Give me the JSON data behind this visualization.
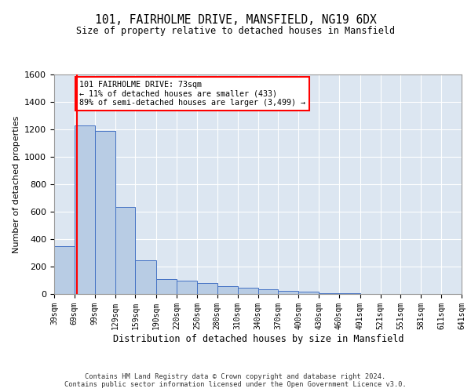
{
  "title": "101, FAIRHOLME DRIVE, MANSFIELD, NG19 6DX",
  "subtitle": "Size of property relative to detached houses in Mansfield",
  "xlabel": "Distribution of detached houses by size in Mansfield",
  "ylabel": "Number of detached properties",
  "footer_line1": "Contains HM Land Registry data © Crown copyright and database right 2024.",
  "footer_line2": "Contains public sector information licensed under the Open Government Licence v3.0.",
  "annotation_line1": "101 FAIRHOLME DRIVE: 73sqm",
  "annotation_line2": "← 11% of detached houses are smaller (433)",
  "annotation_line3": "89% of semi-detached houses are larger (3,499) →",
  "property_sqm": 73,
  "categories": [
    "39sqm",
    "69sqm",
    "99sqm",
    "129sqm",
    "159sqm",
    "190sqm",
    "220sqm",
    "250sqm",
    "280sqm",
    "310sqm",
    "340sqm",
    "370sqm",
    "400sqm",
    "430sqm",
    "460sqm",
    "491sqm",
    "521sqm",
    "551sqm",
    "581sqm",
    "611sqm",
    "641sqm"
  ],
  "bin_edges": [
    39,
    69,
    99,
    129,
    159,
    190,
    220,
    250,
    280,
    310,
    340,
    370,
    400,
    430,
    460,
    491,
    521,
    551,
    581,
    611,
    641
  ],
  "values": [
    350,
    1230,
    1190,
    635,
    245,
    110,
    100,
    80,
    60,
    45,
    35,
    25,
    20,
    8,
    5,
    0,
    0,
    0,
    0,
    0
  ],
  "bar_color": "#b8cce4",
  "bar_edge_color": "#4472c4",
  "property_line_color": "#ff0000",
  "annotation_box_color": "#ff0000",
  "plot_bg_color": "#dce6f1",
  "grid_color": "#ffffff",
  "ylim": [
    0,
    1600
  ],
  "yticks": [
    0,
    200,
    400,
    600,
    800,
    1000,
    1200,
    1400,
    1600
  ]
}
